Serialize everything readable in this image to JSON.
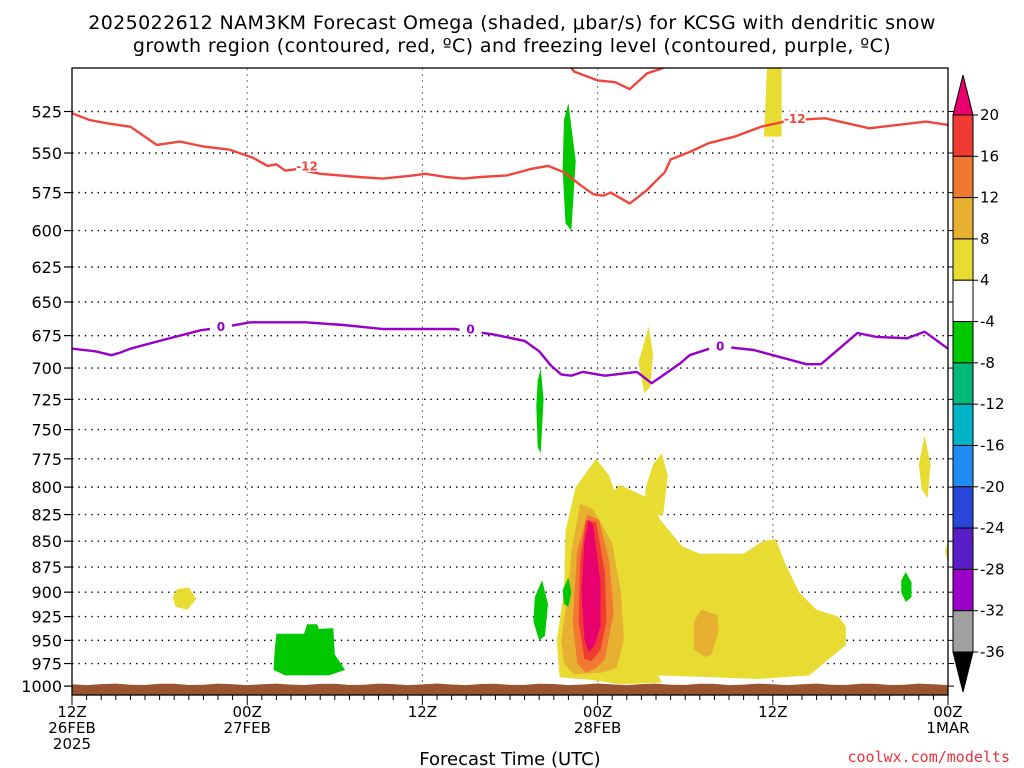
{
  "title_line1": "2025022612 NAM3KM Forecast Omega (shaded, μbar/s) for KCSG with dendritic snow",
  "title_line2": "growth region (contoured, red, ºC) and freezing level (contoured, purple, ºC)",
  "credit": "coolwx.com/modelts",
  "chart_data": {
    "type": "heatmap",
    "title": "2025022612 NAM3KM Forecast Omega (shaded, μbar/s) for KCSG with dendritic snow growth region (contoured, red, ºC) and freezing level (contoured, purple, ºC)",
    "xlabel": "Forecast Time (UTC)",
    "ylabel": "",
    "x_range_hours": [
      0,
      60
    ],
    "y_range_hPa": [
      1010,
      500
    ],
    "y_log_scale": true,
    "grid": true,
    "y_ticks": [
      525,
      550,
      575,
      600,
      625,
      650,
      675,
      700,
      725,
      750,
      775,
      800,
      825,
      850,
      875,
      900,
      925,
      950,
      975,
      1000
    ],
    "x_ticks": [
      {
        "hour": 0,
        "lines": [
          "12Z",
          "26FEB",
          "2025"
        ]
      },
      {
        "hour": 12,
        "lines": [
          "00Z",
          "27FEB"
        ]
      },
      {
        "hour": 24,
        "lines": [
          "12Z"
        ]
      },
      {
        "hour": 36,
        "lines": [
          "00Z",
          "28FEB"
        ]
      },
      {
        "hour": 48,
        "lines": [
          "12Z"
        ]
      },
      {
        "hour": 60,
        "lines": [
          "00Z",
          "1MAR"
        ]
      }
    ],
    "colorbar": {
      "levels": [
        20,
        16,
        12,
        8,
        4,
        -4,
        -8,
        -12,
        -16,
        -20,
        -24,
        -28,
        -32,
        -36
      ],
      "colors": [
        "#e8006e",
        "#f03a32",
        "#f07830",
        "#e8b030",
        "#e8dc32",
        "#ffffff",
        "#00c800",
        "#00b878",
        "#00b4c8",
        "#1e8cf0",
        "#2846d8",
        "#5a1ec8",
        "#9a00c8",
        "#a0a0a0",
        "#000000"
      ]
    },
    "contours": [
      {
        "name": "-12",
        "color": "#f0463c",
        "points": [
          [
            0,
            526
          ],
          [
            1.2,
            530
          ],
          [
            2.4,
            532
          ],
          [
            4,
            534
          ],
          [
            5.8,
            545
          ],
          [
            7.4,
            543
          ],
          [
            9,
            546
          ],
          [
            10.8,
            548
          ],
          [
            12.4,
            553
          ],
          [
            13.4,
            558
          ],
          [
            14,
            557
          ],
          [
            14.6,
            561
          ],
          [
            15.4,
            560
          ],
          [
            17,
            563
          ],
          [
            19.6,
            565
          ],
          [
            21.3,
            566
          ],
          [
            23.4,
            564
          ],
          [
            24.2,
            563
          ],
          [
            25.6,
            565
          ],
          [
            26.8,
            566
          ],
          [
            28,
            565
          ],
          [
            29.8,
            564
          ],
          [
            31.4,
            560
          ],
          [
            32.6,
            558
          ],
          [
            33.7,
            562
          ],
          [
            34.8,
            570
          ],
          [
            35.7,
            576
          ],
          [
            36.4,
            577
          ],
          [
            36.9,
            575
          ],
          [
            38.2,
            582
          ],
          [
            39.3,
            574
          ],
          [
            40.6,
            562
          ],
          [
            41,
            554
          ],
          [
            42.4,
            549
          ],
          [
            43.6,
            544
          ],
          [
            45.4,
            540
          ],
          [
            47.2,
            534
          ],
          [
            49.3,
            530
          ],
          [
            51.6,
            529
          ],
          [
            54.6,
            535
          ],
          [
            58.5,
            531
          ],
          [
            60,
            533
          ]
        ],
        "labels": [
          [
            16.1,
            558
          ],
          [
            49.5,
            529
          ]
        ]
      },
      {
        "name": "-12",
        "color": "#f0463c",
        "points": [
          [
            34.2,
            500
          ],
          [
            34.4,
            502
          ],
          [
            36,
            507
          ],
          [
            37.2,
            508
          ],
          [
            38.2,
            512
          ],
          [
            39.4,
            503
          ],
          [
            40.5,
            500
          ]
        ],
        "labels": []
      },
      {
        "name": "0",
        "color": "#9600c8",
        "points": [
          [
            0,
            685
          ],
          [
            1.6,
            687
          ],
          [
            2.7,
            690
          ],
          [
            3.3,
            688
          ],
          [
            4,
            685
          ],
          [
            6,
            679
          ],
          [
            8.8,
            671
          ],
          [
            10.7,
            668
          ],
          [
            12.2,
            665
          ],
          [
            16,
            665
          ],
          [
            18.6,
            667
          ],
          [
            21.3,
            670
          ],
          [
            24.8,
            670
          ],
          [
            26.2,
            670
          ],
          [
            28.8,
            674
          ],
          [
            31,
            679
          ],
          [
            32,
            687
          ],
          [
            32.8,
            698
          ],
          [
            33.5,
            705
          ],
          [
            34.2,
            706
          ],
          [
            35,
            703
          ],
          [
            36.5,
            706
          ],
          [
            38.7,
            703
          ],
          [
            39.7,
            712
          ],
          [
            40.2,
            708
          ],
          [
            41.7,
            696
          ],
          [
            42.3,
            690
          ],
          [
            44.2,
            683
          ],
          [
            46.7,
            686
          ],
          [
            50.3,
            697
          ],
          [
            51.3,
            697
          ],
          [
            53.8,
            673
          ],
          [
            55.1,
            676
          ],
          [
            57.2,
            677
          ],
          [
            58.4,
            672
          ],
          [
            60,
            685
          ]
        ],
        "labels": [
          [
            10.2,
            668
          ],
          [
            27.3,
            670
          ],
          [
            44.4,
            683
          ]
        ]
      }
    ],
    "shaded_regions": [
      {
        "value": "4..8",
        "color": "#e8dc32",
        "poly": [
          [
            40.4,
            996
          ],
          [
            39.6,
            970
          ],
          [
            39,
            930
          ],
          [
            38.5,
            900
          ],
          [
            38,
            855
          ],
          [
            37.6,
            822
          ],
          [
            36.8,
            790
          ],
          [
            35.9,
            775
          ],
          [
            34.5,
            800
          ],
          [
            33.8,
            840
          ],
          [
            33.7,
            900
          ],
          [
            33.2,
            950
          ],
          [
            33.4,
            990
          ],
          [
            35.6,
            993
          ],
          [
            37.5,
            998
          ]
        ]
      },
      {
        "value": "4..8",
        "color": "#e8dc32",
        "poly": [
          [
            36.5,
            812
          ],
          [
            37.5,
            798
          ],
          [
            39.5,
            810
          ],
          [
            40.3,
            830
          ],
          [
            41.8,
            855
          ],
          [
            43,
            862
          ],
          [
            46,
            862
          ],
          [
            47.3,
            850
          ],
          [
            48.2,
            848
          ],
          [
            48.8,
            870
          ],
          [
            49.8,
            900
          ],
          [
            51,
            918
          ],
          [
            52.5,
            925
          ],
          [
            53,
            935
          ],
          [
            53,
            955
          ],
          [
            52,
            968
          ],
          [
            50.5,
            988
          ],
          [
            47,
            992
          ],
          [
            44,
            990
          ],
          [
            40,
            988
          ],
          [
            36.5,
            985
          ]
        ]
      },
      {
        "value": "4..8",
        "color": "#e8dc32",
        "poly": [
          [
            40.4,
            770
          ],
          [
            40.8,
            790
          ],
          [
            40.5,
            825
          ],
          [
            39.2,
            826
          ],
          [
            39.3,
            800
          ],
          [
            39.8,
            780
          ]
        ]
      },
      {
        "value": "4..8",
        "color": "#e8dc32",
        "poly": [
          [
            39.5,
            668
          ],
          [
            39.8,
            690
          ],
          [
            39.6,
            715
          ],
          [
            39.2,
            720
          ],
          [
            38.8,
            695
          ],
          [
            39.2,
            680
          ]
        ]
      },
      {
        "value": "4..8",
        "color": "#e8dc32",
        "poly": [
          [
            47.6,
            500
          ],
          [
            48.6,
            500
          ],
          [
            48.6,
            540
          ],
          [
            47.4,
            540
          ]
        ]
      },
      {
        "value": "4..8",
        "color": "#e8dc32",
        "poly": [
          [
            58.4,
            755
          ],
          [
            58.8,
            780
          ],
          [
            58.6,
            810
          ],
          [
            58.2,
            802
          ],
          [
            58.0,
            780
          ]
        ]
      },
      {
        "value": "4..8",
        "color": "#e8dc32",
        "poly": [
          [
            7.2,
            897
          ],
          [
            8.0,
            895
          ],
          [
            8.5,
            907
          ],
          [
            7.9,
            918
          ],
          [
            7.1,
            915
          ],
          [
            6.9,
            905
          ]
        ]
      },
      {
        "value": "4..8",
        "color": "#e8dc32",
        "poly": [
          [
            59.8,
            860
          ],
          [
            60,
            850
          ],
          [
            60,
            870
          ]
        ]
      },
      {
        "value": "8..12",
        "color": "#e8b030",
        "poly": [
          [
            35.7,
            820
          ],
          [
            37,
            852
          ],
          [
            37.6,
            900
          ],
          [
            37.8,
            950
          ],
          [
            37.3,
            980
          ],
          [
            36.3,
            985
          ],
          [
            34.4,
            987
          ],
          [
            33.7,
            975
          ],
          [
            33.5,
            950
          ],
          [
            34.0,
            900
          ],
          [
            34.2,
            860
          ],
          [
            34.8,
            815
          ]
        ]
      },
      {
        "value": "8..12",
        "color": "#e8b030",
        "poly": [
          [
            43.1,
            918
          ],
          [
            44.2,
            923
          ],
          [
            44.3,
            940
          ],
          [
            43.8,
            965
          ],
          [
            43.4,
            968
          ],
          [
            42.6,
            960
          ],
          [
            42.6,
            930
          ]
        ]
      },
      {
        "value": "12..16",
        "color": "#f07830",
        "poly": [
          [
            36.1,
            830
          ],
          [
            36.8,
            870
          ],
          [
            37.1,
            920
          ],
          [
            36.5,
            970
          ],
          [
            35.9,
            980
          ],
          [
            35.2,
            985
          ],
          [
            34.6,
            975
          ],
          [
            34.3,
            930
          ],
          [
            34.6,
            860
          ],
          [
            35.3,
            825
          ]
        ]
      },
      {
        "value": "16..20",
        "color": "#f03a32",
        "poly": [
          [
            35.9,
            832
          ],
          [
            36.5,
            880
          ],
          [
            36.6,
            930
          ],
          [
            36.2,
            960
          ],
          [
            35.6,
            972
          ],
          [
            35.1,
            970
          ],
          [
            34.7,
            930
          ],
          [
            34.8,
            870
          ],
          [
            35.2,
            830
          ]
        ]
      },
      {
        "value": ">20",
        "color": "#e8006e",
        "poly": [
          [
            35.7,
            835
          ],
          [
            36.2,
            890
          ],
          [
            36.2,
            935
          ],
          [
            35.8,
            955
          ],
          [
            35.4,
            962
          ],
          [
            35.1,
            950
          ],
          [
            34.9,
            900
          ],
          [
            35.1,
            850
          ],
          [
            35.4,
            830
          ]
        ]
      },
      {
        "value": "-8..-4",
        "color": "#00c800",
        "poly": [
          [
            14,
            943
          ],
          [
            15.9,
            943
          ],
          [
            16.1,
            933
          ],
          [
            16.8,
            933
          ],
          [
            16.9,
            938
          ],
          [
            17.9,
            937
          ],
          [
            18,
            965
          ],
          [
            18.7,
            982
          ],
          [
            17.6,
            988
          ],
          [
            14.6,
            988
          ],
          [
            13.8,
            982
          ],
          [
            13.9,
            958
          ]
        ]
      },
      {
        "value": "-8..-4",
        "color": "#00c800",
        "poly": [
          [
            34.0,
            520
          ],
          [
            34.5,
            555
          ],
          [
            34.2,
            600
          ],
          [
            33.8,
            595
          ],
          [
            33.6,
            560
          ],
          [
            33.7,
            530
          ]
        ]
      },
      {
        "value": "-8..-4",
        "color": "#00c800",
        "poly": [
          [
            32.1,
            700
          ],
          [
            32.3,
            725
          ],
          [
            32.1,
            770
          ],
          [
            31.9,
            765
          ],
          [
            31.8,
            730
          ],
          [
            31.9,
            710
          ]
        ]
      },
      {
        "value": "-8..-4",
        "color": "#00c800",
        "poly": [
          [
            32.2,
            888
          ],
          [
            32.6,
            912
          ],
          [
            32.4,
            945
          ],
          [
            32,
            950
          ],
          [
            31.6,
            930
          ],
          [
            31.7,
            905
          ]
        ]
      },
      {
        "value": "-8..-4",
        "color": "#00c800",
        "poly": [
          [
            34.0,
            885
          ],
          [
            34.2,
            900
          ],
          [
            34.0,
            915
          ],
          [
            33.7,
            912
          ],
          [
            33.6,
            898
          ]
        ]
      },
      {
        "value": "-8..-4",
        "color": "#00c800",
        "poly": [
          [
            57.1,
            880
          ],
          [
            57.5,
            890
          ],
          [
            57.5,
            905
          ],
          [
            57.1,
            910
          ],
          [
            56.8,
            900
          ],
          [
            56.8,
            888
          ]
        ]
      }
    ],
    "ground": {
      "color": "#9a5530",
      "top_hPa": 998
    }
  }
}
